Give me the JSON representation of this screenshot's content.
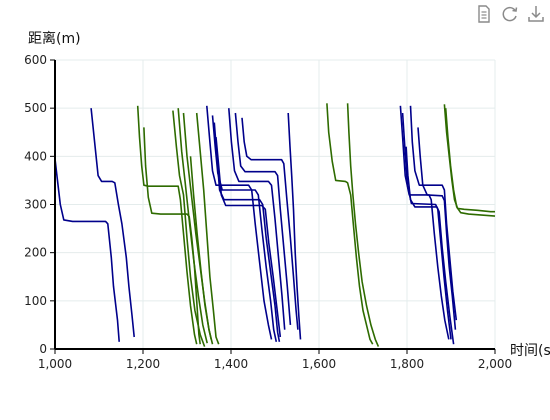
{
  "toolbar": {
    "icons": [
      "document-icon",
      "refresh-icon",
      "download-icon"
    ],
    "icon_color": "#8a8a8a"
  },
  "chart_data": {
    "type": "line",
    "title": "",
    "xlabel": "时间(s)",
    "ylabel": "距离(m)",
    "xlim": [
      1000,
      2000
    ],
    "ylim": [
      0,
      600
    ],
    "x_ticks": [
      "1,000",
      "1,200",
      "1,400",
      "1,600",
      "1,800",
      "2,000"
    ],
    "y_ticks": [
      "0",
      "100",
      "200",
      "300",
      "400",
      "500",
      "600"
    ],
    "x_tick_values": [
      1000,
      1200,
      1400,
      1600,
      1800,
      2000
    ],
    "y_tick_values": [
      0,
      100,
      200,
      300,
      400,
      500,
      600
    ],
    "grid": true,
    "colors": {
      "blue": "#00008b",
      "green": "#2e6b00",
      "grid": "#e4ecec",
      "axis": "#000000"
    },
    "series": [
      {
        "color": "blue",
        "points": [
          [
            1000,
            395
          ],
          [
            1005,
            355
          ],
          [
            1012,
            300
          ],
          [
            1020,
            268
          ],
          [
            1040,
            265
          ],
          [
            1115,
            265
          ],
          [
            1120,
            260
          ],
          [
            1128,
            190
          ],
          [
            1133,
            130
          ],
          [
            1142,
            60
          ],
          [
            1146,
            15
          ]
        ]
      },
      {
        "color": "blue",
        "points": [
          [
            1082,
            500
          ],
          [
            1090,
            430
          ],
          [
            1098,
            360
          ],
          [
            1106,
            348
          ],
          [
            1130,
            348
          ],
          [
            1136,
            345
          ],
          [
            1144,
            300
          ],
          [
            1152,
            260
          ],
          [
            1162,
            190
          ],
          [
            1168,
            130
          ],
          [
            1175,
            70
          ],
          [
            1180,
            25
          ]
        ]
      },
      {
        "color": "green",
        "points": [
          [
            1188,
            505
          ],
          [
            1192,
            440
          ],
          [
            1197,
            380
          ],
          [
            1202,
            340
          ],
          [
            1212,
            338
          ],
          [
            1280,
            338
          ],
          [
            1285,
            310
          ],
          [
            1292,
            240
          ],
          [
            1300,
            160
          ],
          [
            1308,
            90
          ],
          [
            1317,
            30
          ],
          [
            1322,
            10
          ]
        ]
      },
      {
        "color": "green",
        "points": [
          [
            1202,
            460
          ],
          [
            1206,
            380
          ],
          [
            1212,
            315
          ],
          [
            1220,
            282
          ],
          [
            1240,
            280
          ],
          [
            1300,
            280
          ],
          [
            1305,
            275
          ],
          [
            1311,
            230
          ],
          [
            1317,
            170
          ],
          [
            1322,
            100
          ],
          [
            1327,
            30
          ],
          [
            1330,
            10
          ]
        ]
      },
      {
        "color": "green",
        "points": [
          [
            1268,
            495
          ],
          [
            1276,
            420
          ],
          [
            1283,
            360
          ],
          [
            1292,
            320
          ],
          [
            1300,
            230
          ],
          [
            1308,
            150
          ],
          [
            1318,
            80
          ],
          [
            1330,
            30
          ],
          [
            1340,
            5
          ]
        ]
      },
      {
        "color": "green",
        "points": [
          [
            1280,
            500
          ],
          [
            1288,
            410
          ],
          [
            1296,
            345
          ],
          [
            1306,
            260
          ],
          [
            1316,
            180
          ],
          [
            1326,
            110
          ],
          [
            1336,
            50
          ],
          [
            1346,
            12
          ]
        ]
      },
      {
        "color": "green",
        "points": [
          [
            1292,
            490
          ],
          [
            1300,
            400
          ],
          [
            1310,
            320
          ],
          [
            1320,
            240
          ],
          [
            1330,
            170
          ],
          [
            1340,
            100
          ],
          [
            1350,
            40
          ],
          [
            1358,
            10
          ]
        ]
      },
      {
        "color": "green",
        "points": [
          [
            1308,
            400
          ],
          [
            1315,
            320
          ],
          [
            1323,
            240
          ],
          [
            1332,
            160
          ],
          [
            1341,
            90
          ],
          [
            1350,
            40
          ],
          [
            1355,
            20
          ]
        ]
      },
      {
        "color": "green",
        "points": [
          [
            1322,
            490
          ],
          [
            1330,
            410
          ],
          [
            1338,
            330
          ],
          [
            1345,
            240
          ],
          [
            1352,
            150
          ],
          [
            1360,
            80
          ],
          [
            1366,
            25
          ],
          [
            1372,
            10
          ]
        ]
      },
      {
        "color": "blue",
        "points": [
          [
            1345,
            505
          ],
          [
            1352,
            430
          ],
          [
            1358,
            370
          ],
          [
            1366,
            340
          ],
          [
            1440,
            340
          ],
          [
            1447,
            330
          ],
          [
            1455,
            260
          ],
          [
            1465,
            180
          ],
          [
            1475,
            100
          ],
          [
            1485,
            50
          ],
          [
            1492,
            20
          ]
        ]
      },
      {
        "color": "blue",
        "points": [
          [
            1358,
            485
          ],
          [
            1364,
            420
          ],
          [
            1370,
            365
          ],
          [
            1380,
            330
          ],
          [
            1455,
            330
          ],
          [
            1462,
            320
          ],
          [
            1470,
            250
          ],
          [
            1480,
            170
          ],
          [
            1490,
            100
          ],
          [
            1497,
            40
          ],
          [
            1503,
            15
          ]
        ]
      },
      {
        "color": "blue",
        "points": [
          [
            1362,
            470
          ],
          [
            1368,
            400
          ],
          [
            1374,
            330
          ],
          [
            1384,
            310
          ],
          [
            1465,
            310
          ],
          [
            1472,
            300
          ],
          [
            1480,
            230
          ],
          [
            1490,
            160
          ],
          [
            1500,
            90
          ],
          [
            1506,
            35
          ],
          [
            1510,
            15
          ]
        ]
      },
      {
        "color": "blue",
        "points": [
          [
            1366,
            440
          ],
          [
            1372,
            380
          ],
          [
            1378,
            320
          ],
          [
            1388,
            298
          ],
          [
            1470,
            298
          ],
          [
            1478,
            290
          ],
          [
            1486,
            220
          ],
          [
            1496,
            150
          ],
          [
            1505,
            80
          ],
          [
            1512,
            25
          ]
        ]
      },
      {
        "color": "blue",
        "points": [
          [
            1395,
            500
          ],
          [
            1401,
            430
          ],
          [
            1408,
            370
          ],
          [
            1418,
            348
          ],
          [
            1485,
            348
          ],
          [
            1492,
            340
          ],
          [
            1500,
            270
          ],
          [
            1508,
            190
          ],
          [
            1516,
            110
          ],
          [
            1522,
            40
          ]
        ]
      },
      {
        "color": "blue",
        "points": [
          [
            1410,
            490
          ],
          [
            1416,
            430
          ],
          [
            1422,
            380
          ],
          [
            1432,
            368
          ],
          [
            1500,
            368
          ],
          [
            1506,
            360
          ],
          [
            1512,
            290
          ],
          [
            1520,
            210
          ],
          [
            1528,
            130
          ],
          [
            1535,
            50
          ]
        ]
      },
      {
        "color": "blue",
        "points": [
          [
            1425,
            480
          ],
          [
            1430,
            430
          ],
          [
            1436,
            400
          ],
          [
            1446,
            393
          ],
          [
            1515,
            393
          ],
          [
            1520,
            385
          ],
          [
            1527,
            310
          ],
          [
            1535,
            230
          ],
          [
            1542,
            150
          ],
          [
            1548,
            80
          ],
          [
            1552,
            40
          ]
        ]
      },
      {
        "color": "blue",
        "points": [
          [
            1530,
            490
          ],
          [
            1534,
            420
          ],
          [
            1538,
            360
          ],
          [
            1542,
            290
          ],
          [
            1546,
            200
          ],
          [
            1550,
            130
          ],
          [
            1554,
            70
          ],
          [
            1558,
            20
          ]
        ]
      },
      {
        "color": "green",
        "points": [
          [
            1618,
            510
          ],
          [
            1622,
            450
          ],
          [
            1630,
            390
          ],
          [
            1638,
            350
          ],
          [
            1660,
            348
          ],
          [
            1665,
            345
          ],
          [
            1672,
            320
          ],
          [
            1678,
            260
          ],
          [
            1685,
            190
          ],
          [
            1692,
            130
          ],
          [
            1700,
            80
          ],
          [
            1708,
            50
          ],
          [
            1716,
            20
          ],
          [
            1722,
            10
          ]
        ]
      },
      {
        "color": "green",
        "points": [
          [
            1665,
            510
          ],
          [
            1668,
            450
          ],
          [
            1672,
            380
          ],
          [
            1677,
            320
          ],
          [
            1683,
            260
          ],
          [
            1690,
            200
          ],
          [
            1698,
            140
          ],
          [
            1708,
            90
          ],
          [
            1718,
            50
          ],
          [
            1728,
            20
          ],
          [
            1735,
            5
          ]
        ]
      },
      {
        "color": "blue",
        "points": [
          [
            1785,
            505
          ],
          [
            1790,
            440
          ],
          [
            1796,
            360
          ],
          [
            1805,
            320
          ],
          [
            1850,
            320
          ],
          [
            1855,
            310
          ],
          [
            1862,
            240
          ],
          [
            1870,
            170
          ],
          [
            1878,
            110
          ],
          [
            1886,
            60
          ],
          [
            1895,
            20
          ]
        ]
      },
      {
        "color": "blue",
        "points": [
          [
            1790,
            490
          ],
          [
            1795,
            420
          ],
          [
            1801,
            340
          ],
          [
            1810,
            302
          ],
          [
            1865,
            300
          ],
          [
            1870,
            290
          ],
          [
            1877,
            220
          ],
          [
            1884,
            150
          ],
          [
            1892,
            80
          ],
          [
            1900,
            20
          ]
        ]
      },
      {
        "color": "blue",
        "points": [
          [
            1798,
            420
          ],
          [
            1802,
            360
          ],
          [
            1808,
            310
          ],
          [
            1818,
            295
          ],
          [
            1868,
            295
          ],
          [
            1873,
            285
          ],
          [
            1880,
            210
          ],
          [
            1888,
            140
          ],
          [
            1897,
            70
          ],
          [
            1906,
            10
          ]
        ]
      },
      {
        "color": "blue",
        "points": [
          [
            1808,
            505
          ],
          [
            1812,
            430
          ],
          [
            1818,
            370
          ],
          [
            1828,
            340
          ],
          [
            1880,
            340
          ],
          [
            1885,
            330
          ],
          [
            1890,
            260
          ],
          [
            1897,
            190
          ],
          [
            1904,
            120
          ],
          [
            1912,
            60
          ]
        ]
      },
      {
        "color": "blue",
        "points": [
          [
            1825,
            460
          ],
          [
            1830,
            400
          ],
          [
            1836,
            340
          ],
          [
            1846,
            320
          ],
          [
            1880,
            318
          ],
          [
            1885,
            308
          ],
          [
            1890,
            240
          ],
          [
            1896,
            170
          ],
          [
            1903,
            110
          ],
          [
            1910,
            40
          ]
        ]
      },
      {
        "color": "green",
        "points": [
          [
            1885,
            508
          ],
          [
            1890,
            450
          ],
          [
            1896,
            400
          ],
          [
            1902,
            350
          ],
          [
            1908,
            310
          ],
          [
            1915,
            292
          ],
          [
            1930,
            290
          ],
          [
            1960,
            288
          ],
          [
            1990,
            285
          ],
          [
            2000,
            285
          ]
        ]
      },
      {
        "color": "green",
        "points": [
          [
            1888,
            500
          ],
          [
            1893,
            440
          ],
          [
            1899,
            380
          ],
          [
            1906,
            330
          ],
          [
            1913,
            295
          ],
          [
            1922,
            283
          ],
          [
            1940,
            280
          ],
          [
            1970,
            278
          ],
          [
            2000,
            276
          ]
        ]
      }
    ]
  }
}
